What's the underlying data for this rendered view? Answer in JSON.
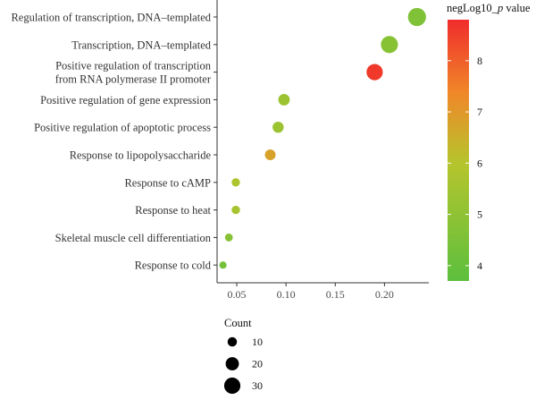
{
  "chart_data": {
    "type": "scatter",
    "categories": [
      "Regulation of transcription, DNA–templated",
      "Transcription, DNA–templated",
      "Positive regulation of transcription\nfrom RNA polymerase II promoter",
      "Positive regulation of gene expression",
      "Positive regulation of apoptotic process",
      "Response to lipopolysaccharide",
      "Response to cAMP",
      "Response to heat",
      "Skeletal muscle cell differentiation",
      "Response to cold"
    ],
    "x": [
      0.233,
      0.205,
      0.19,
      0.098,
      0.092,
      0.084,
      0.049,
      0.049,
      0.042,
      0.036
    ],
    "count": [
      37,
      33,
      30,
      15,
      14,
      13,
      8,
      8,
      7,
      6
    ],
    "neglog10p": [
      4.6,
      4.8,
      8.6,
      5.3,
      5.3,
      6.8,
      5.8,
      5.6,
      4.8,
      4.3
    ],
    "x_ticks": [
      "0.05",
      "0.10",
      "0.15",
      "0.20"
    ],
    "x_tick_values": [
      0.05,
      0.1,
      0.15,
      0.2
    ],
    "xlim": [
      0.03,
      0.245
    ],
    "xlabel": "",
    "ylabel": "",
    "grid": false,
    "color_legend": {
      "title_prefix": "negLog10_",
      "title_italic": "p",
      "title_suffix": " value",
      "ticks": [
        "4",
        "5",
        "6",
        "7",
        "8"
      ],
      "tick_values": [
        4,
        5,
        6,
        7,
        8
      ],
      "range": [
        3.7,
        8.8
      ],
      "low_color": "#5cbf3d",
      "mid_color": "#b6c52d",
      "high_color": "#f02c2c",
      "placement": "right"
    },
    "size_legend": {
      "title": "Count",
      "labels": [
        "10",
        "20",
        "30"
      ],
      "values": [
        10,
        20,
        30
      ],
      "placement": "bottom-left"
    }
  }
}
